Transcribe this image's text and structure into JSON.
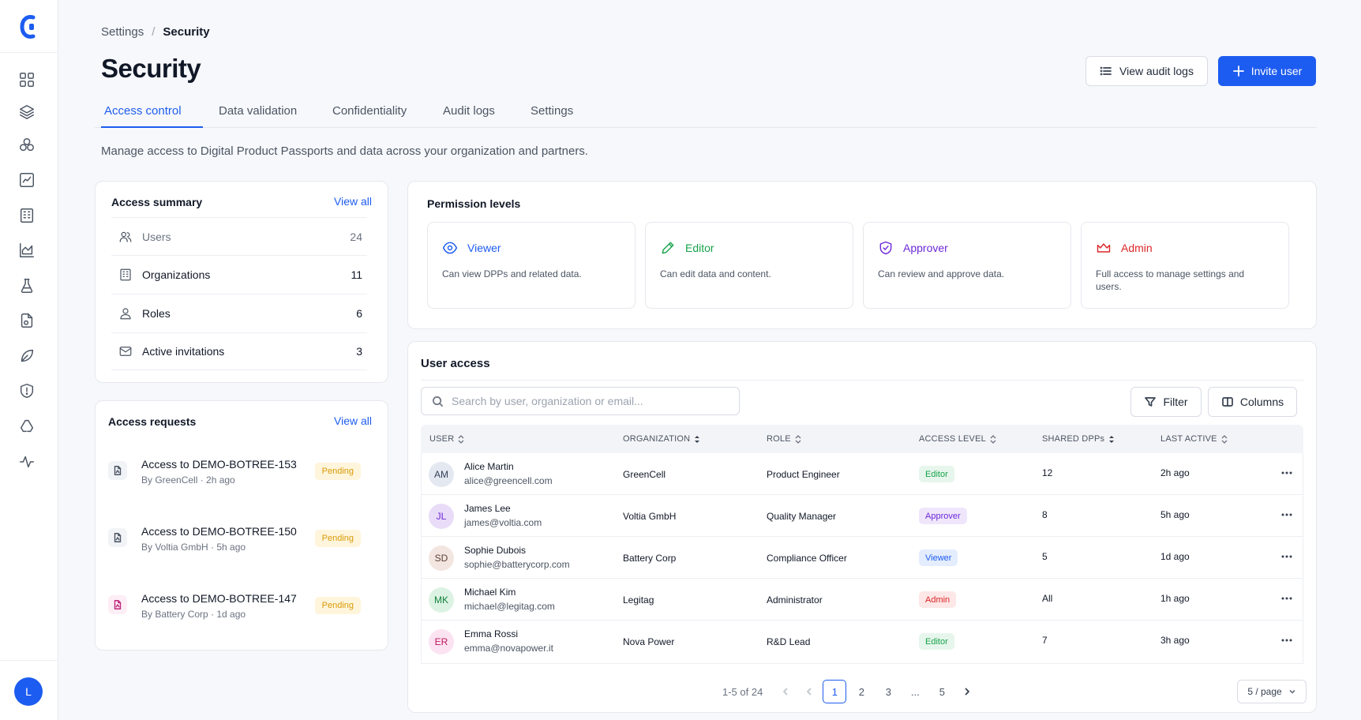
{
  "breadcrumb": {
    "parent": "Settings",
    "separator": "/",
    "current": "Security"
  },
  "page": {
    "title": "Security",
    "description": "Manage access to Digital Product Passports and data across your organization and partners."
  },
  "header_actions": {
    "audit_label": "View audit logs",
    "invite_label": "Invite user"
  },
  "tabs": [
    "Access control",
    "Data validation",
    "Confidentiality",
    "Audit logs",
    "Settings"
  ],
  "active_tab": "Access control",
  "sidebar": {
    "icons": [
      "dashboard-icon",
      "layers-icon",
      "cluster-icon",
      "chart-icon",
      "building-icon",
      "area-chart-icon",
      "flask-icon",
      "document-icon",
      "leaf-icon",
      "shield-icon",
      "recycle-icon",
      "activity-icon"
    ],
    "user_initial": "L"
  },
  "access_summary": {
    "title": "Access summary",
    "view_all": "View all",
    "rows": [
      {
        "label": "Users",
        "value": "24",
        "icon": "users-icon"
      },
      {
        "label": "Organizations",
        "value": "11",
        "icon": "building-icon"
      },
      {
        "label": "Roles",
        "value": "6",
        "icon": "user-icon"
      },
      {
        "label": "Active invitations",
        "value": "3",
        "icon": "mail-icon"
      }
    ]
  },
  "access_requests": {
    "title": "Access requests",
    "view_all": "View all",
    "items": [
      {
        "title": "Access to DEMO-BOTREE-153",
        "sub": "By GreenCell · 2h ago",
        "status": "Pending"
      },
      {
        "title": "Access to DEMO-BOTREE-150",
        "sub": "By Voltia GmbH · 5h ago",
        "status": "Pending"
      },
      {
        "title": "Access to DEMO-BOTREE-147",
        "sub": "By Battery Corp · 1d ago",
        "status": "Pending"
      }
    ]
  },
  "permission_levels": {
    "title": "Permission levels",
    "items": [
      {
        "name": "Viewer",
        "desc": "Can view DPPs and related data.",
        "icon": "eye-icon",
        "color": "#1d5cf0"
      },
      {
        "name": "Editor",
        "desc": "Can edit data and content.",
        "icon": "pencil-icon",
        "color": "#16a34a"
      },
      {
        "name": "Approver",
        "desc": "Can review and approve data.",
        "icon": "shield-check-icon",
        "color": "#6d28d9"
      },
      {
        "name": "Admin",
        "desc": "Full access to manage settings and users.",
        "icon": "crown-icon",
        "color": "#dc2626"
      }
    ]
  },
  "user_access": {
    "title": "User access",
    "search_placeholder": "Search by user, organization or email...",
    "filter_label": "Filter",
    "columns_label": "Columns",
    "headers": [
      "USER",
      "ORGANIZATION",
      "ROLE",
      "ACCESS LEVEL",
      "SHARED DPPs",
      "LAST ACTIVE"
    ],
    "rows": [
      {
        "initials": "AM",
        "name": "Alice Martin",
        "email": "alice@greencell.com",
        "organization": "GreenCell",
        "role": "Product Engineer",
        "access": "Editor",
        "shared": "12",
        "last_active": "2h ago"
      },
      {
        "initials": "JL",
        "name": "James Lee",
        "email": "james@voltia.com",
        "organization": "Voltia GmbH",
        "role": "Quality Manager",
        "access": "Approver",
        "shared": "8",
        "last_active": "5h ago"
      },
      {
        "initials": "SD",
        "name": "Sophie Dubois",
        "email": "sophie@batterycorp.com",
        "organization": "Battery Corp",
        "role": "Compliance Officer",
        "access": "Viewer",
        "shared": "5",
        "last_active": "1d ago"
      },
      {
        "initials": "MK",
        "name": "Michael Kim",
        "email": "michael@legitag.com",
        "organization": "Legitag",
        "role": "Administrator",
        "access": "Admin",
        "shared": "All",
        "last_active": "1h ago"
      },
      {
        "initials": "ER",
        "name": "Emma Rossi",
        "email": "emma@novapower.it",
        "organization": "Nova Power",
        "role": "R&D Lead",
        "access": "Editor",
        "shared": "7",
        "last_active": "3h ago"
      }
    ],
    "pagination": {
      "info": "1-5 of 24",
      "pages": [
        "1",
        "2",
        "3",
        "...",
        "5"
      ],
      "current": "1",
      "per_page": "5 / page"
    }
  },
  "colors": {
    "accent": "#1d5cf0",
    "pending_bg": "#fff5dc",
    "pending_text": "#d99a06",
    "editor": "#16a34a",
    "approver": "#6d28d9",
    "viewer": "#1d5cf0",
    "admin": "#dc2626"
  }
}
